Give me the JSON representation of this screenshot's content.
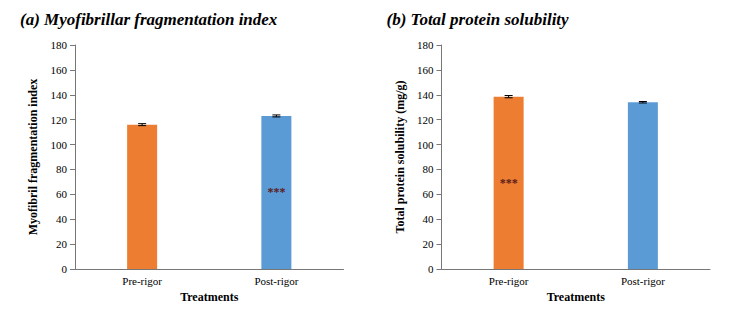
{
  "chart_data": [
    {
      "type": "bar",
      "title": "(a) Myofibrillar fragmentation index",
      "x_label": "Treatments",
      "y_label": "Myofibril fragmentation index",
      "categories": [
        "Pre-rigor",
        "Post-rigor"
      ],
      "values": [
        116,
        123
      ],
      "errors": [
        0.8,
        0.8
      ],
      "colors": [
        "#ed7d31",
        "#5b9bd5"
      ],
      "ylim": [
        0,
        180
      ],
      "yticks": [
        0,
        20,
        40,
        60,
        80,
        100,
        120,
        140,
        160,
        180
      ],
      "grid": false,
      "annotations": [
        {
          "category": "Post-rigor",
          "text": "***"
        }
      ]
    },
    {
      "type": "bar",
      "title": "(b) Total protein solubility",
      "x_label": "Treatments",
      "y_label": "Total protein solubility (mg/g)",
      "categories": [
        "Pre-rigor",
        "Post-rigor"
      ],
      "values": [
        138.5,
        134
      ],
      "errors": [
        0.9,
        0.6
      ],
      "colors": [
        "#ed7d31",
        "#5b9bd5"
      ],
      "ylim": [
        0,
        180
      ],
      "yticks": [
        0,
        20,
        40,
        60,
        80,
        100,
        120,
        140,
        160,
        180
      ],
      "grid": false,
      "annotations": [
        {
          "category": "Pre-rigor",
          "text": "***"
        }
      ]
    }
  ]
}
